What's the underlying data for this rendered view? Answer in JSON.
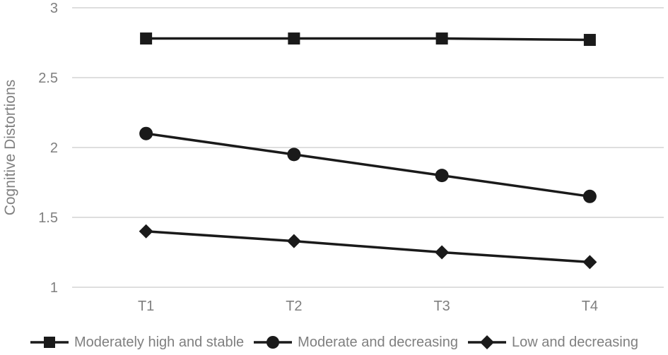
{
  "chart_data": {
    "type": "line",
    "title": "",
    "xlabel": "",
    "ylabel": "Cognitive Distortions",
    "categories": [
      "T1",
      "T2",
      "T3",
      "T4"
    ],
    "series": [
      {
        "name": "Moderately high and stable",
        "marker": "square",
        "values": [
          2.78,
          2.78,
          2.78,
          2.77
        ]
      },
      {
        "name": "Moderate and decreasing",
        "marker": "circle",
        "values": [
          2.1,
          1.95,
          1.8,
          1.65
        ]
      },
      {
        "name": "Low and decreasing",
        "marker": "diamond",
        "values": [
          1.4,
          1.33,
          1.25,
          1.18
        ]
      }
    ],
    "ylim": [
      1,
      3
    ],
    "yticks": [
      3,
      2.5,
      2,
      1.5,
      1
    ],
    "ytick_labels": [
      "3",
      "2.5",
      "2",
      "1.5",
      "1"
    ],
    "grid": true,
    "legend_position": "bottom",
    "colors": {
      "series": "#1a1a1a",
      "gridline": "#d9d9d9",
      "axis_text": "#7f7f7f",
      "background": "#ffffff"
    }
  }
}
